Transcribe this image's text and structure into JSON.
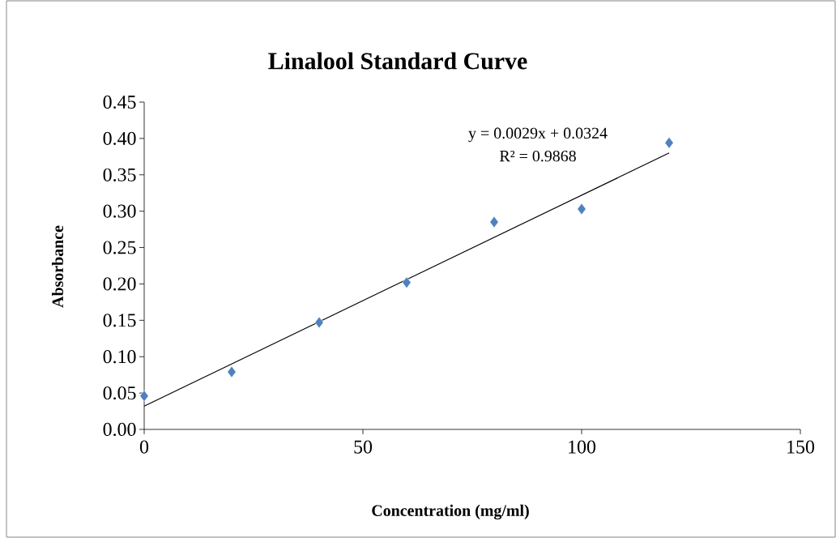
{
  "chart_data": {
    "type": "scatter",
    "title": "Linalool  Standard Curve",
    "xlabel": "Concentration (mg/ml)",
    "ylabel": "Absorbance",
    "annotations": [
      "y = 0.0029x + 0.0324",
      "R² = 0.9868"
    ],
    "series": [
      {
        "color": "#4f81bd",
        "x": [
          0,
          20,
          40,
          60,
          80,
          100,
          120
        ],
        "values": [
          0.046,
          0.079,
          0.147,
          0.202,
          0.285,
          0.303,
          0.394
        ]
      },
      {
        "type": "line",
        "color": "#000000",
        "marker": "none",
        "x": [
          0,
          120
        ],
        "values": [
          0.032,
          0.38
        ]
      }
    ],
    "xlim": [
      0,
      150
    ],
    "xticks": [
      0,
      50,
      100,
      150
    ],
    "ylim": [
      0,
      0.45
    ],
    "yticks": [
      {
        "value": 0,
        "label": "0.00"
      },
      {
        "value": 0.05,
        "label": "0.05"
      },
      {
        "value": 0.1,
        "label": "0.10"
      },
      {
        "value": 0.15,
        "label": "0.15"
      },
      {
        "value": 0.2,
        "label": "0.20"
      },
      {
        "value": 0.25,
        "label": "0.25"
      },
      {
        "value": 0.3,
        "label": "0.30"
      },
      {
        "value": 0.35,
        "label": "0.35"
      },
      {
        "value": 0.4,
        "label": "0.40"
      },
      {
        "value": 0.45,
        "label": "0.45"
      }
    ],
    "grid": false,
    "marker": "diamond"
  }
}
